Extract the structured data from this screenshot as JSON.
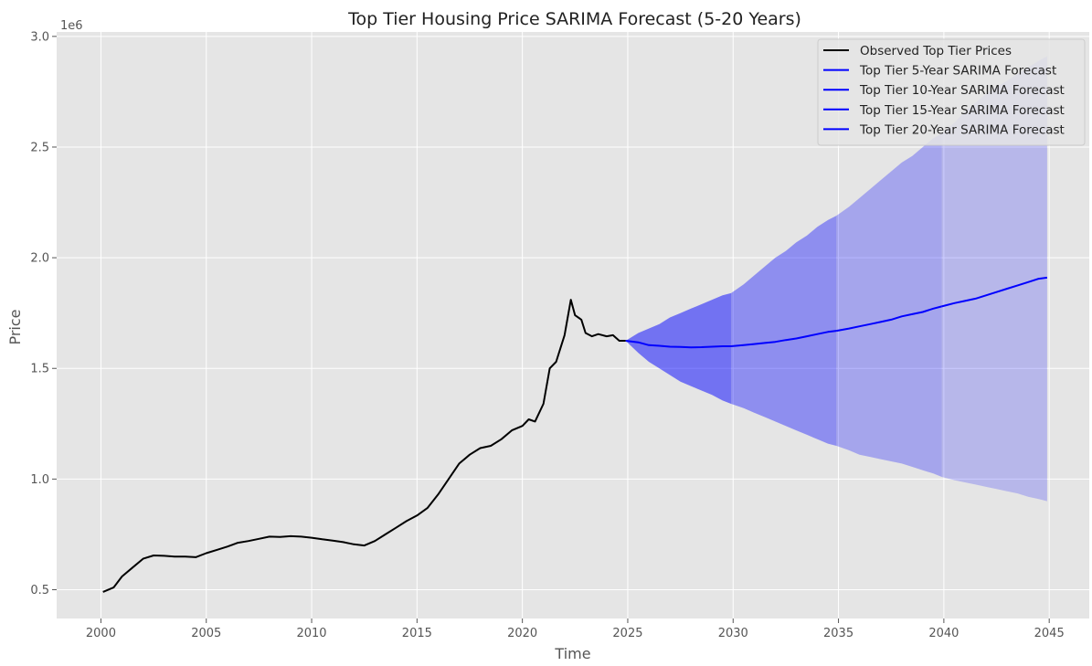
{
  "chart_data": {
    "type": "line",
    "title": "Top Tier Housing Price SARIMA Forecast (5-20 Years)",
    "xlabel": "Time",
    "ylabel": "Price",
    "y_offset_label": "1e6",
    "xlim": [
      1997.9,
      2046.9
    ],
    "ylim": [
      0.37,
      3.02
    ],
    "y_scale_unit": 1000000,
    "x_ticks": [
      2000,
      2005,
      2010,
      2015,
      2020,
      2025,
      2030,
      2035,
      2040,
      2045
    ],
    "x_tick_labels": [
      "2000",
      "2005",
      "2010",
      "2015",
      "2020",
      "2025",
      "2030",
      "2035",
      "2040",
      "2045"
    ],
    "y_ticks": [
      0.5,
      1.0,
      1.5,
      2.0,
      2.5,
      3.0
    ],
    "y_tick_labels": [
      "0.5",
      "1.0",
      "1.5",
      "2.0",
      "2.5",
      "3.0"
    ],
    "grid": true,
    "legend_position": "top-right",
    "colors": {
      "background": "#e5e5e5",
      "grid": "#ffffff",
      "observed": "#000000",
      "forecast": "#0000ff",
      "band": "#0000ff"
    },
    "observed": {
      "name": "Observed Top Tier Prices",
      "x": [
        2000.1,
        2000.6,
        2001.0,
        2001.5,
        2002.0,
        2002.5,
        2003.0,
        2003.5,
        2004.0,
        2004.5,
        2005.0,
        2005.5,
        2006.0,
        2006.5,
        2007.0,
        2007.5,
        2008.0,
        2008.5,
        2009.0,
        2009.5,
        2010.0,
        2010.5,
        2011.0,
        2011.5,
        2012.0,
        2012.5,
        2013.0,
        2013.5,
        2014.0,
        2014.5,
        2015.0,
        2015.5,
        2016.0,
        2016.5,
        2017.0,
        2017.5,
        2018.0,
        2018.5,
        2019.0,
        2019.5,
        2020.0,
        2020.3,
        2020.6,
        2021.0,
        2021.3,
        2021.6,
        2022.0,
        2022.3,
        2022.5,
        2022.8,
        2023.0,
        2023.3,
        2023.6,
        2024.0,
        2024.3,
        2024.6,
        2024.9
      ],
      "y": [
        0.49,
        0.51,
        0.56,
        0.6,
        0.64,
        0.655,
        0.653,
        0.65,
        0.65,
        0.647,
        0.665,
        0.68,
        0.695,
        0.712,
        0.72,
        0.73,
        0.74,
        0.738,
        0.742,
        0.74,
        0.735,
        0.728,
        0.722,
        0.715,
        0.705,
        0.7,
        0.72,
        0.75,
        0.78,
        0.81,
        0.835,
        0.87,
        0.93,
        1.0,
        1.07,
        1.11,
        1.14,
        1.15,
        1.18,
        1.22,
        1.24,
        1.27,
        1.26,
        1.34,
        1.5,
        1.53,
        1.65,
        1.81,
        1.74,
        1.72,
        1.66,
        1.645,
        1.655,
        1.645,
        1.65,
        1.625,
        1.625
      ]
    },
    "forecasts": [
      {
        "name": "Top Tier 5-Year SARIMA Forecast",
        "x": [
          2024.9,
          2025.5,
          2026.0,
          2026.5,
          2027.0,
          2027.5,
          2028.0,
          2028.5,
          2029.0,
          2029.5,
          2029.9
        ],
        "y": [
          1.625,
          1.618,
          1.605,
          1.602,
          1.598,
          1.597,
          1.595,
          1.596,
          1.598,
          1.6,
          1.6
        ],
        "lower": [
          1.625,
          1.57,
          1.53,
          1.5,
          1.47,
          1.44,
          1.42,
          1.4,
          1.38,
          1.355,
          1.34
        ],
        "upper": [
          1.625,
          1.66,
          1.68,
          1.7,
          1.73,
          1.75,
          1.77,
          1.79,
          1.81,
          1.83,
          1.84
        ]
      },
      {
        "name": "Top Tier 10-Year SARIMA Forecast",
        "x": [
          2029.9,
          2030.5,
          2031.0,
          2031.5,
          2032.0,
          2032.5,
          2033.0,
          2033.5,
          2034.0,
          2034.5,
          2034.9
        ],
        "y": [
          1.6,
          1.605,
          1.61,
          1.615,
          1.62,
          1.628,
          1.635,
          1.645,
          1.655,
          1.665,
          1.67
        ],
        "lower": [
          1.34,
          1.32,
          1.3,
          1.28,
          1.26,
          1.24,
          1.22,
          1.2,
          1.18,
          1.16,
          1.15
        ],
        "upper": [
          1.84,
          1.88,
          1.92,
          1.96,
          2.0,
          2.03,
          2.07,
          2.1,
          2.14,
          2.17,
          2.19
        ]
      },
      {
        "name": "Top Tier 15-Year SARIMA Forecast",
        "x": [
          2034.9,
          2035.5,
          2036.0,
          2036.5,
          2037.0,
          2037.5,
          2038.0,
          2038.5,
          2039.0,
          2039.5,
          2039.9
        ],
        "y": [
          1.67,
          1.68,
          1.69,
          1.7,
          1.71,
          1.72,
          1.735,
          1.745,
          1.755,
          1.77,
          1.78
        ],
        "lower": [
          1.15,
          1.13,
          1.11,
          1.1,
          1.09,
          1.08,
          1.07,
          1.055,
          1.04,
          1.025,
          1.01
        ],
        "upper": [
          2.19,
          2.23,
          2.27,
          2.31,
          2.35,
          2.39,
          2.43,
          2.46,
          2.5,
          2.54,
          2.56
        ]
      },
      {
        "name": "Top Tier 20-Year SARIMA Forecast",
        "x": [
          2039.9,
          2040.5,
          2041.0,
          2041.5,
          2042.0,
          2042.5,
          2043.0,
          2043.5,
          2044.0,
          2044.5,
          2044.9
        ],
        "y": [
          1.78,
          1.795,
          1.805,
          1.815,
          1.83,
          1.845,
          1.86,
          1.875,
          1.89,
          1.905,
          1.91
        ],
        "lower": [
          1.01,
          0.995,
          0.985,
          0.975,
          0.965,
          0.955,
          0.945,
          0.935,
          0.92,
          0.91,
          0.9
        ],
        "upper": [
          2.56,
          2.61,
          2.66,
          2.7,
          2.74,
          2.77,
          2.8,
          2.83,
          2.86,
          2.89,
          2.91
        ]
      }
    ],
    "band_opacity": [
      0.5,
      0.38,
      0.28,
      0.2
    ]
  }
}
